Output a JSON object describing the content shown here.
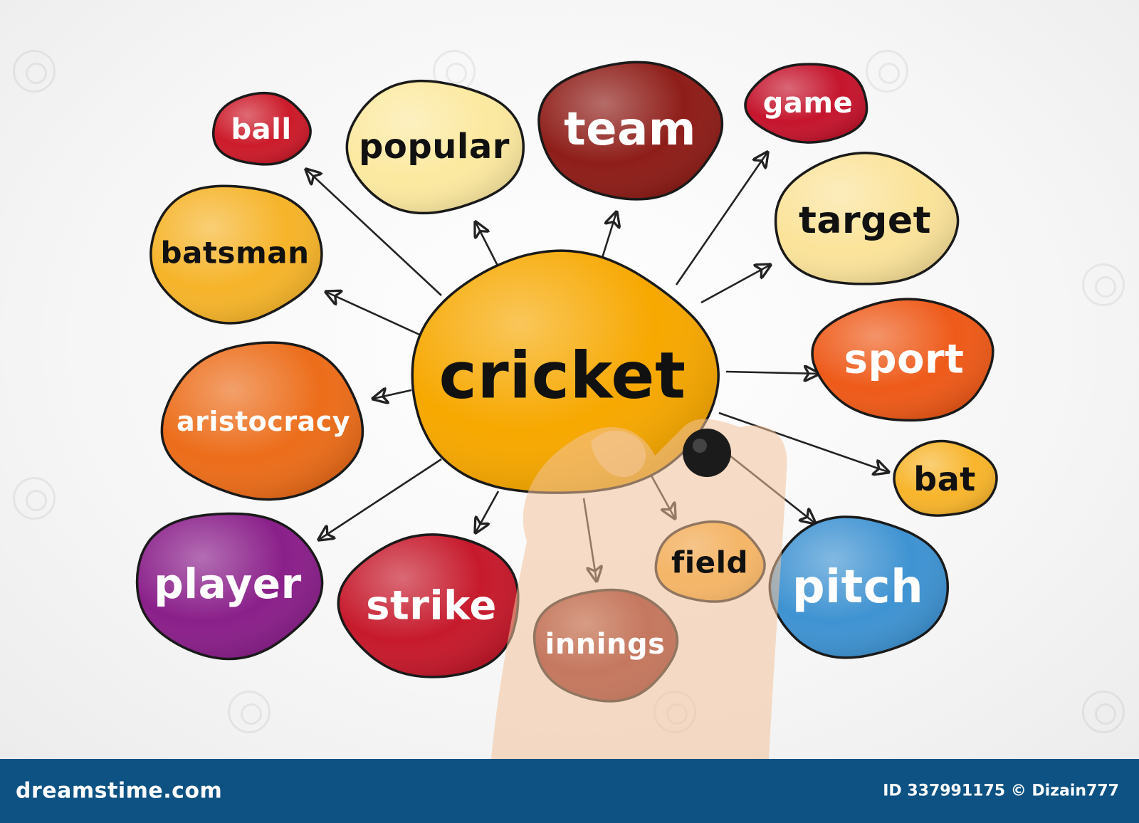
{
  "diagram": {
    "center": {
      "label": "cricket",
      "color": "#f7a800"
    },
    "nodes": [
      {
        "id": "ball",
        "label": "ball",
        "color": "#cc1b2a",
        "text_color": "#ffffff"
      },
      {
        "id": "popular",
        "label": "popular",
        "color": "#fce9a0",
        "text_color": "#111111"
      },
      {
        "id": "team",
        "label": "team",
        "color": "#8e1d18",
        "text_color": "#ffffff"
      },
      {
        "id": "game",
        "label": "game",
        "color": "#c5152d",
        "text_color": "#ffffff"
      },
      {
        "id": "target",
        "label": "target",
        "color": "#fbe39a",
        "text_color": "#111111"
      },
      {
        "id": "batsman",
        "label": "batsman",
        "color": "#f6b42a",
        "text_color": "#111111"
      },
      {
        "id": "sport",
        "label": "sport",
        "color": "#ee5a19",
        "text_color": "#ffffff"
      },
      {
        "id": "aristocracy",
        "label": "aristocracy",
        "color": "#ec6d1a",
        "text_color": "#ffffff"
      },
      {
        "id": "bat",
        "label": "bat",
        "color": "#f8b52c",
        "text_color": "#111111"
      },
      {
        "id": "player",
        "label": "player",
        "color": "#8a1f8a",
        "text_color": "#ffffff"
      },
      {
        "id": "strike",
        "label": "strike",
        "color": "#c61a2c",
        "text_color": "#ffffff"
      },
      {
        "id": "field",
        "label": "field",
        "color": "#f7a62a",
        "text_color": "#111111"
      },
      {
        "id": "pitch",
        "label": "pitch",
        "color": "#3f93d2",
        "text_color": "#ffffff"
      },
      {
        "id": "innings",
        "label": "innings",
        "color": "#8e1d18",
        "text_color": "#ffffff"
      }
    ]
  },
  "footer": {
    "brand": "dreamstime.com",
    "id_text": "ID 337991175 © Dizain777",
    "color": "#0d5283"
  },
  "icons": {
    "watermark": "dreamstime-swirl-icon",
    "hand": "hand-with-marker-icon"
  }
}
